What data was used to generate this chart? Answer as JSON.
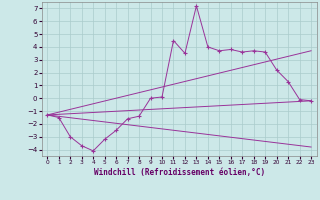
{
  "xlabel": "Windchill (Refroidissement éolien,°C)",
  "x_ticks": [
    0,
    1,
    2,
    3,
    4,
    5,
    6,
    7,
    8,
    9,
    10,
    11,
    12,
    13,
    14,
    15,
    16,
    17,
    18,
    19,
    20,
    21,
    22,
    23
  ],
  "ylim": [
    -4.5,
    7.5
  ],
  "xlim": [
    -0.5,
    23.5
  ],
  "yticks": [
    -4,
    -3,
    -2,
    -1,
    0,
    1,
    2,
    3,
    4,
    5,
    6,
    7
  ],
  "bg_color": "#cce8e8",
  "grid_color": "#aacccc",
  "line_color": "#993399",
  "series1_x": [
    0,
    1,
    2,
    3,
    4,
    5,
    6,
    7,
    8,
    9,
    10,
    11,
    12,
    13,
    14,
    15,
    16,
    17,
    18,
    19,
    20,
    21,
    22,
    23
  ],
  "series1_y": [
    -1.3,
    -1.5,
    -3.0,
    -3.7,
    -4.1,
    -3.2,
    -2.5,
    -1.6,
    -1.4,
    0.0,
    0.1,
    4.5,
    3.5,
    7.2,
    4.0,
    3.7,
    3.8,
    3.6,
    3.7,
    3.6,
    2.2,
    1.3,
    -0.1,
    -0.2
  ],
  "series2_x": [
    0,
    23
  ],
  "series2_y": [
    -1.3,
    -0.2
  ],
  "series3_x": [
    0,
    23
  ],
  "series3_y": [
    -1.3,
    -3.8
  ],
  "series4_x": [
    0,
    23
  ],
  "series4_y": [
    -1.3,
    3.7
  ],
  "xlabel_color": "#660066",
  "tick_color": "#330033"
}
